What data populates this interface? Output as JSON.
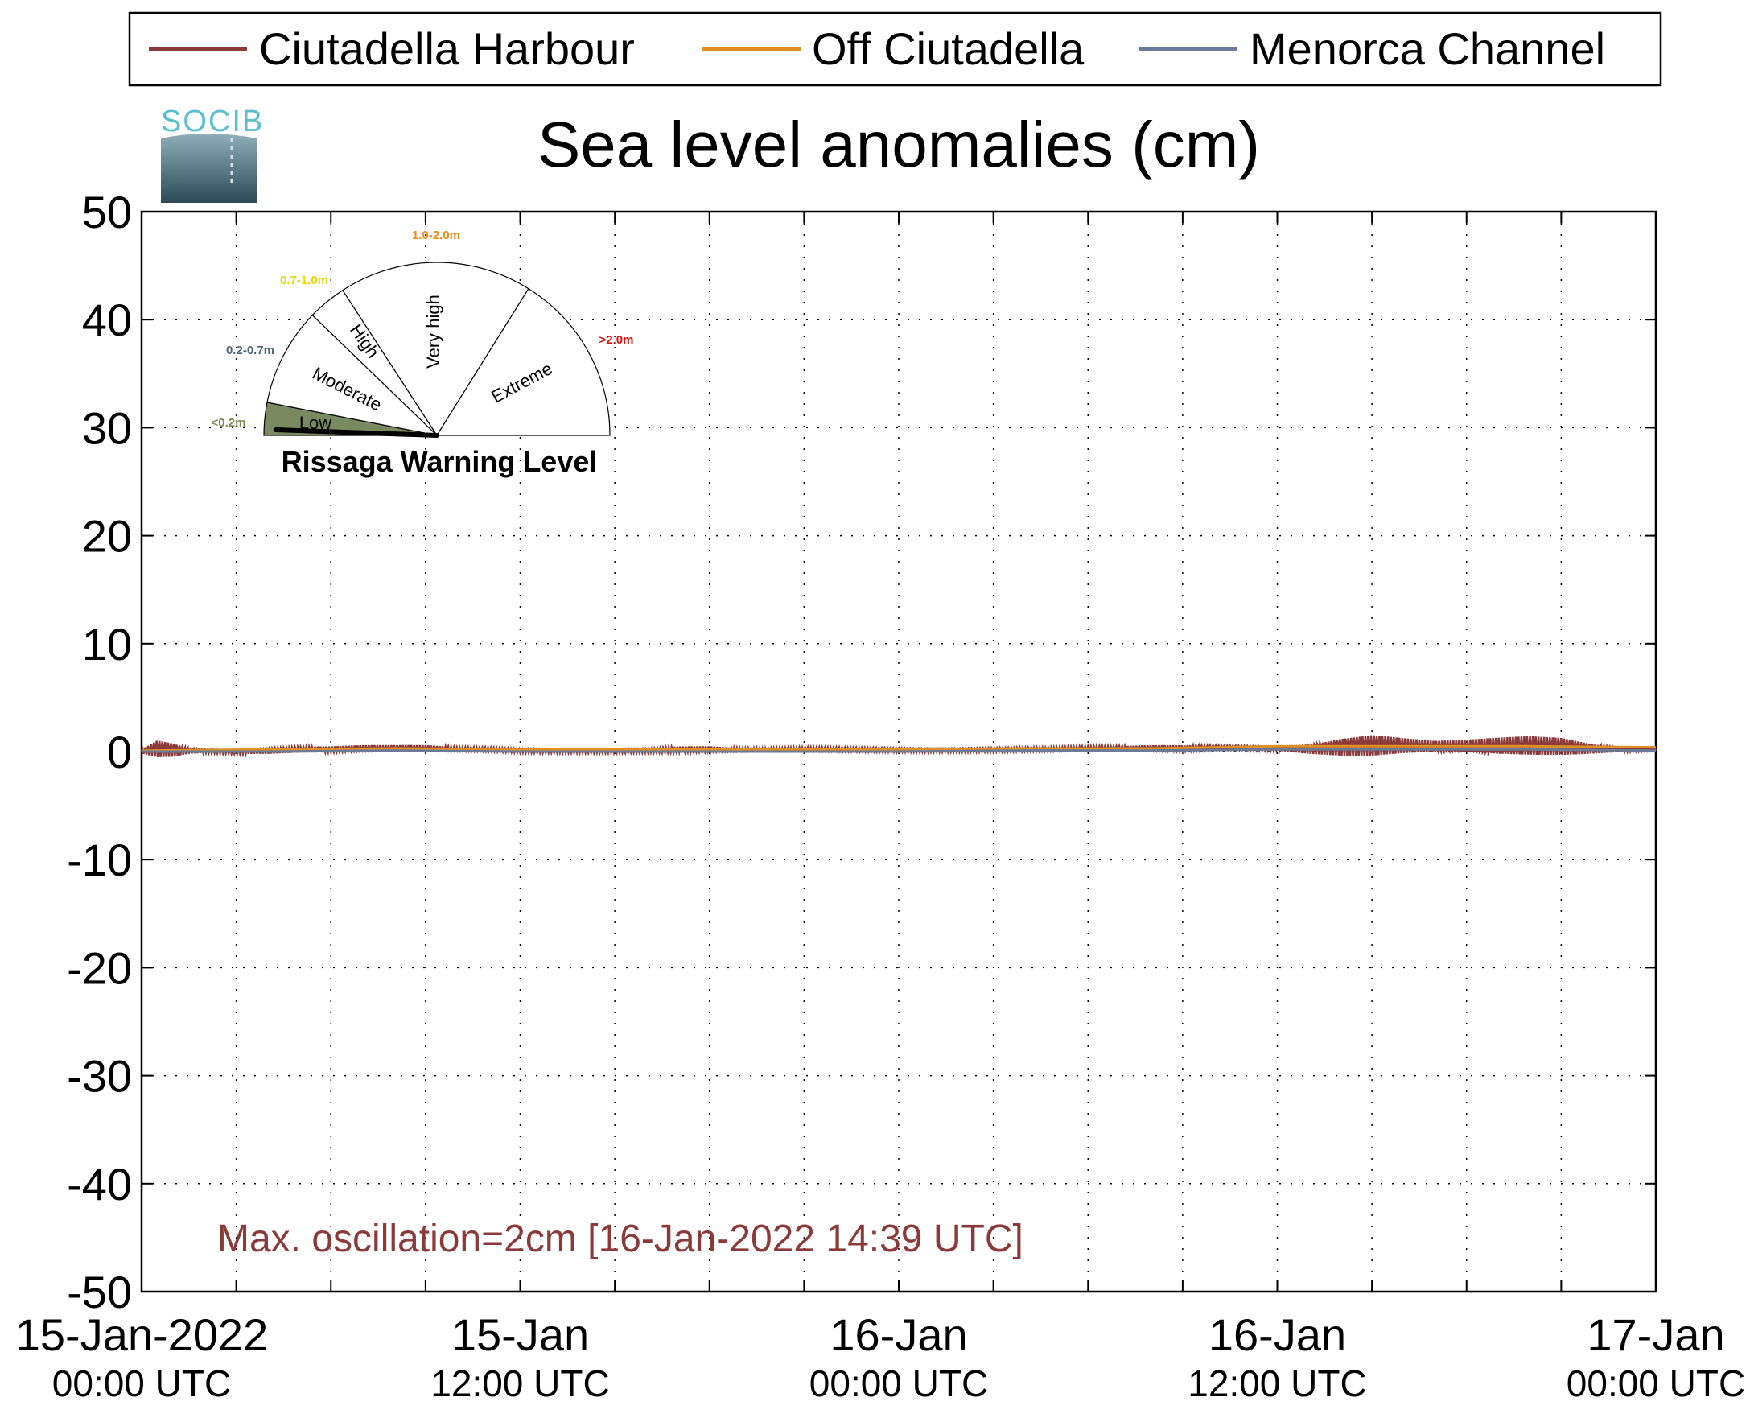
{
  "legend": {
    "items": [
      {
        "label": "Ciutadella Harbour",
        "color": "#8b3a3a"
      },
      {
        "label": "Off Ciutadella",
        "color": "#e08f26"
      },
      {
        "label": "Menorca Channel",
        "color": "#6a7b9a"
      }
    ]
  },
  "logo": {
    "text": "SOCIB"
  },
  "gauge": {
    "title": "Rissaga Warning Level",
    "sectors": [
      {
        "name": "Low",
        "range": "<0.2m",
        "range_color": "#7a8a50"
      },
      {
        "name": "Moderate",
        "range": "0.2-0.7m",
        "range_color": "#4a6a7a"
      },
      {
        "name": "High",
        "range": "0.7-1.0m",
        "range_color": "#e8d800"
      },
      {
        "name": "Very high",
        "range": "1.0-2.0m",
        "range_color": "#f08a10"
      },
      {
        "name": "Extreme",
        "range": ">2.0m",
        "range_color": "#e01010"
      }
    ],
    "active_level": "Low",
    "active_color": "#7a8a60"
  },
  "chart_data": {
    "type": "line",
    "title": "Sea level anomalies (cm)",
    "xlabel": "",
    "ylabel": "",
    "ylim": [
      -50,
      50
    ],
    "yticks": [
      "50",
      "40",
      "30",
      "20",
      "10",
      "0",
      "-10",
      "-20",
      "-30",
      "-40",
      "-50"
    ],
    "xlim_hours": [
      0,
      48
    ],
    "xtick_labels": [
      {
        "hours": 0,
        "line1": "15-Jan-2022",
        "line2": "00:00 UTC"
      },
      {
        "hours": 12,
        "line1": "15-Jan",
        "line2": "12:00 UTC"
      },
      {
        "hours": 24,
        "line1": "16-Jan",
        "line2": "00:00 UTC"
      },
      {
        "hours": 36,
        "line1": "16-Jan",
        "line2": "12:00 UTC"
      },
      {
        "hours": 48,
        "line1": "17-Jan",
        "line2": "00:00 UTC"
      }
    ],
    "minor_tick_hours": [
      3,
      6,
      9,
      15,
      18,
      21,
      27,
      30,
      33,
      39,
      42,
      45
    ],
    "grid": true,
    "series": [
      {
        "name": "Ciutadella Harbour",
        "color": "#8b3a3a",
        "x_hours": [
          0,
          0.5,
          1,
          1.5,
          2,
          3,
          4,
          5,
          6,
          7,
          8,
          9,
          10,
          11,
          12,
          13,
          14,
          15,
          16,
          17,
          18,
          19,
          20,
          21,
          22,
          23,
          24,
          25,
          26,
          27,
          28,
          29,
          30,
          31,
          32,
          33,
          34,
          35,
          36,
          37,
          38,
          39,
          40,
          41,
          42,
          43,
          44,
          45,
          46,
          47,
          48
        ],
        "y_mid": [
          0,
          0.3,
          0.2,
          0.1,
          0.1,
          0,
          0.1,
          0.2,
          0.2,
          0.3,
          0.3,
          0.3,
          0.2,
          0.2,
          0.1,
          0.1,
          0.1,
          0.1,
          0.1,
          0.2,
          0.2,
          0.1,
          0.1,
          0.2,
          0.2,
          0.2,
          0.2,
          0.2,
          0.2,
          0.2,
          0.2,
          0.2,
          0.3,
          0.3,
          0.3,
          0.3,
          0.4,
          0.4,
          0.3,
          0.3,
          0.5,
          0.6,
          0.5,
          0.4,
          0.4,
          0.4,
          0.5,
          0.5,
          0.3,
          0.2,
          0.2
        ],
        "y_amp": [
          0.2,
          0.9,
          0.7,
          0.3,
          0.2,
          0.2,
          0.3,
          0.3,
          0.3,
          0.3,
          0.3,
          0.3,
          0.2,
          0.2,
          0.2,
          0.2,
          0.2,
          0.2,
          0.2,
          0.3,
          0.3,
          0.2,
          0.2,
          0.2,
          0.2,
          0.2,
          0.2,
          0.2,
          0.2,
          0.2,
          0.2,
          0.2,
          0.2,
          0.2,
          0.3,
          0.3,
          0.2,
          0.2,
          0.2,
          0.5,
          0.9,
          1.1,
          0.8,
          0.6,
          0.7,
          0.9,
          1.0,
          0.9,
          0.5,
          0.2,
          0.1
        ]
      },
      {
        "name": "Off Ciutadella",
        "color": "#e08f26",
        "x_hours": [
          0,
          4,
          8,
          12,
          16,
          20,
          24,
          28,
          32,
          36,
          40,
          44,
          48
        ],
        "y": [
          0.1,
          0.2,
          0.3,
          0.2,
          0.2,
          0.2,
          0.2,
          0.3,
          0.3,
          0.5,
          0.5,
          0.5,
          0.4
        ]
      },
      {
        "name": "Menorca Channel",
        "color": "#6a7b9a",
        "x_hours": [
          0,
          4,
          8,
          12,
          16,
          20,
          24,
          28,
          32,
          36,
          40,
          44,
          48
        ],
        "y": [
          0.0,
          0.0,
          0.1,
          0.0,
          0.0,
          0.0,
          0.0,
          0.1,
          0.1,
          0.2,
          0.2,
          0.2,
          0.1
        ]
      }
    ],
    "annotation": {
      "text": "Max. oscillation=2cm [16-Jan-2022 14:39 UTC]",
      "color": "#8b3a3a"
    }
  }
}
